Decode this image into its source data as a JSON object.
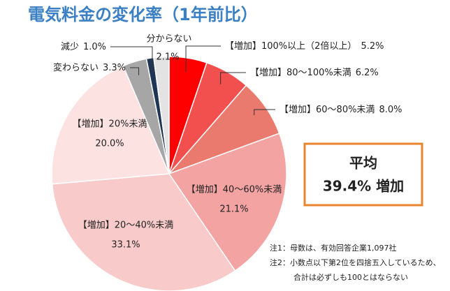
{
  "chart_data": {
    "type": "pie",
    "title": "電気料金の変化率（1年前比）",
    "categories": [
      "【増加】100%以上（2倍以上）",
      "【増加】80～100%未満",
      "【増加】60～80%未満",
      "【増加】40～60%未満",
      "【増加】20～40%未満",
      "【増加】20%未満",
      "変わらない",
      "減少",
      "分からない"
    ],
    "values": [
      5.2,
      6.2,
      8.0,
      21.1,
      33.1,
      20.0,
      3.3,
      1.0,
      2.1
    ],
    "value_labels": [
      "5.2%",
      "6.2%",
      "8.0%",
      "21.1%",
      "33.1%",
      "20.0%",
      "3.3%",
      "1.0%",
      "2.1%"
    ],
    "colors": [
      "#ff0000",
      "#f24f4f",
      "#ea7a6e",
      "#f4a3a3",
      "#f8caca",
      "#fde2e2",
      "#a6a6a6",
      "#1f3556",
      "#e3e3e3"
    ],
    "annotation": {
      "title": "平均",
      "value": "39.4% 増加"
    },
    "notes": [
      "注1：母数は、有効回答企業1,097社",
      "注2：小数点以下第2位を四捨五入しているため、",
      "合計は必ずしも100とはならない"
    ]
  }
}
